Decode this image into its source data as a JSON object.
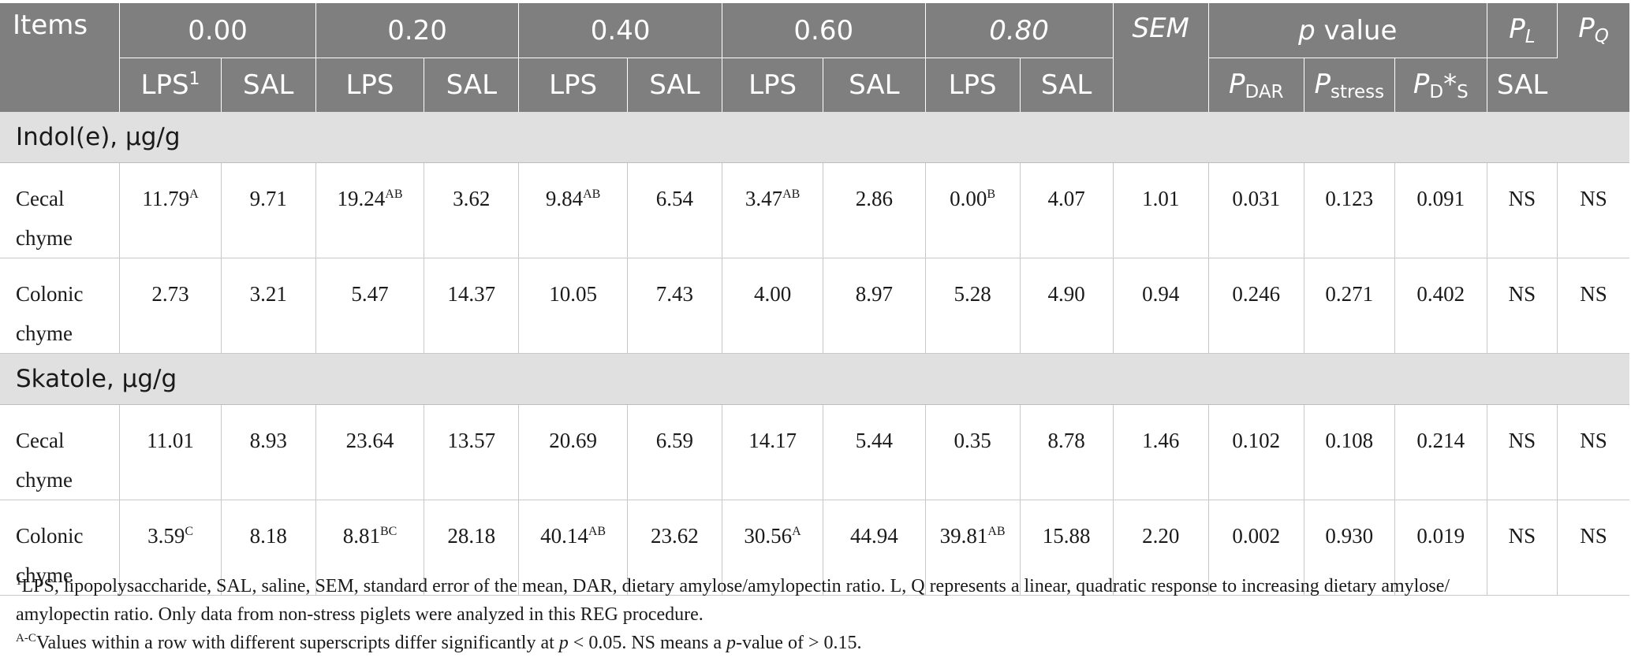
{
  "header": {
    "items": "Items",
    "groups": [
      "0.00",
      "0.20",
      "0.40",
      "0.60",
      "0.80"
    ],
    "sem": "SEM",
    "pvalue_italic": "p",
    "pvalue_rest": " value",
    "pl_main": "P",
    "pl_sub": "L",
    "pq_main": "P",
    "pq_sub": "Q",
    "lps_first": "LPS",
    "lps_first_sup": "1",
    "lps": "LPS",
    "sal": "SAL",
    "pdar_main": "P",
    "pdar_sub": "DAR",
    "pstress_main": "P",
    "pstress_sub": "stress",
    "pds_main": "P",
    "pds_sub1": "D",
    "pds_star": "*",
    "pds_sub2": "S",
    "pl_col2": "SAL"
  },
  "sections": [
    {
      "title": "Indol(e), μg/g",
      "rows": [
        {
          "label_line1": "Cecal",
          "label_line2": "chyme",
          "cells": [
            {
              "v": "11.79",
              "s": "A"
            },
            {
              "v": "9.71",
              "s": ""
            },
            {
              "v": "19.24",
              "s": "AB"
            },
            {
              "v": "3.62",
              "s": ""
            },
            {
              "v": "9.84",
              "s": "AB"
            },
            {
              "v": "6.54",
              "s": ""
            },
            {
              "v": "3.47",
              "s": "AB"
            },
            {
              "v": "2.86",
              "s": ""
            },
            {
              "v": "0.00",
              "s": "B"
            },
            {
              "v": "4.07",
              "s": ""
            },
            {
              "v": "1.01",
              "s": ""
            },
            {
              "v": "0.031",
              "s": ""
            },
            {
              "v": "0.123",
              "s": ""
            },
            {
              "v": "0.091",
              "s": ""
            },
            {
              "v": "NS",
              "s": ""
            },
            {
              "v": "NS",
              "s": ""
            }
          ]
        },
        {
          "label_line1": "Colonic",
          "label_line2": "chyme",
          "cells": [
            {
              "v": "2.73",
              "s": ""
            },
            {
              "v": "3.21",
              "s": ""
            },
            {
              "v": "5.47",
              "s": ""
            },
            {
              "v": "14.37",
              "s": ""
            },
            {
              "v": "10.05",
              "s": ""
            },
            {
              "v": "7.43",
              "s": ""
            },
            {
              "v": "4.00",
              "s": ""
            },
            {
              "v": "8.97",
              "s": ""
            },
            {
              "v": "5.28",
              "s": ""
            },
            {
              "v": "4.90",
              "s": ""
            },
            {
              "v": "0.94",
              "s": ""
            },
            {
              "v": "0.246",
              "s": ""
            },
            {
              "v": "0.271",
              "s": ""
            },
            {
              "v": "0.402",
              "s": ""
            },
            {
              "v": "NS",
              "s": ""
            },
            {
              "v": "NS",
              "s": ""
            }
          ]
        }
      ]
    },
    {
      "title": "Skatole, μg/g",
      "rows": [
        {
          "label_line1": "Cecal",
          "label_line2": "chyme",
          "cells": [
            {
              "v": "11.01",
              "s": ""
            },
            {
              "v": "8.93",
              "s": ""
            },
            {
              "v": "23.64",
              "s": ""
            },
            {
              "v": "13.57",
              "s": ""
            },
            {
              "v": "20.69",
              "s": ""
            },
            {
              "v": "6.59",
              "s": ""
            },
            {
              "v": "14.17",
              "s": ""
            },
            {
              "v": "5.44",
              "s": ""
            },
            {
              "v": "0.35",
              "s": ""
            },
            {
              "v": "8.78",
              "s": ""
            },
            {
              "v": "1.46",
              "s": ""
            },
            {
              "v": "0.102",
              "s": ""
            },
            {
              "v": "0.108",
              "s": ""
            },
            {
              "v": "0.214",
              "s": ""
            },
            {
              "v": "NS",
              "s": ""
            },
            {
              "v": "NS",
              "s": ""
            }
          ]
        },
        {
          "label_line1": "Colonic",
          "label_line2": "chyme",
          "cells": [
            {
              "v": "3.59",
              "s": "C"
            },
            {
              "v": "8.18",
              "s": ""
            },
            {
              "v": "8.81",
              "s": "BC"
            },
            {
              "v": "28.18",
              "s": ""
            },
            {
              "v": "40.14",
              "s": "AB"
            },
            {
              "v": "23.62",
              "s": ""
            },
            {
              "v": "30.56",
              "s": "A"
            },
            {
              "v": "44.94",
              "s": ""
            },
            {
              "v": "39.81",
              "s": "AB"
            },
            {
              "v": "15.88",
              "s": ""
            },
            {
              "v": "2.20",
              "s": ""
            },
            {
              "v": "0.002",
              "s": ""
            },
            {
              "v": "0.930",
              "s": ""
            },
            {
              "v": "0.019",
              "s": ""
            },
            {
              "v": "NS",
              "s": ""
            },
            {
              "v": "NS",
              "s": ""
            }
          ]
        }
      ]
    }
  ],
  "footnotes": {
    "note1_sup": "1",
    "note1_text": "LPS, lipopolysaccharide, SAL, saline, SEM, standard error of the mean, DAR, dietary amylose/amylopectin ratio. L, Q represents a linear, quadratic response to increasing dietary amylose/",
    "note1_text2": "amylopectin ratio. Only data from non-stress piglets were analyzed in this REG procedure.",
    "note2_sup": "A-C",
    "note2_a": "Values within a row with different superscripts differ significantly at ",
    "note2_p": "p",
    "note2_b": " < 0.05. NS means a ",
    "note2_p2": "p",
    "note2_c": "-value of > 0.15."
  }
}
